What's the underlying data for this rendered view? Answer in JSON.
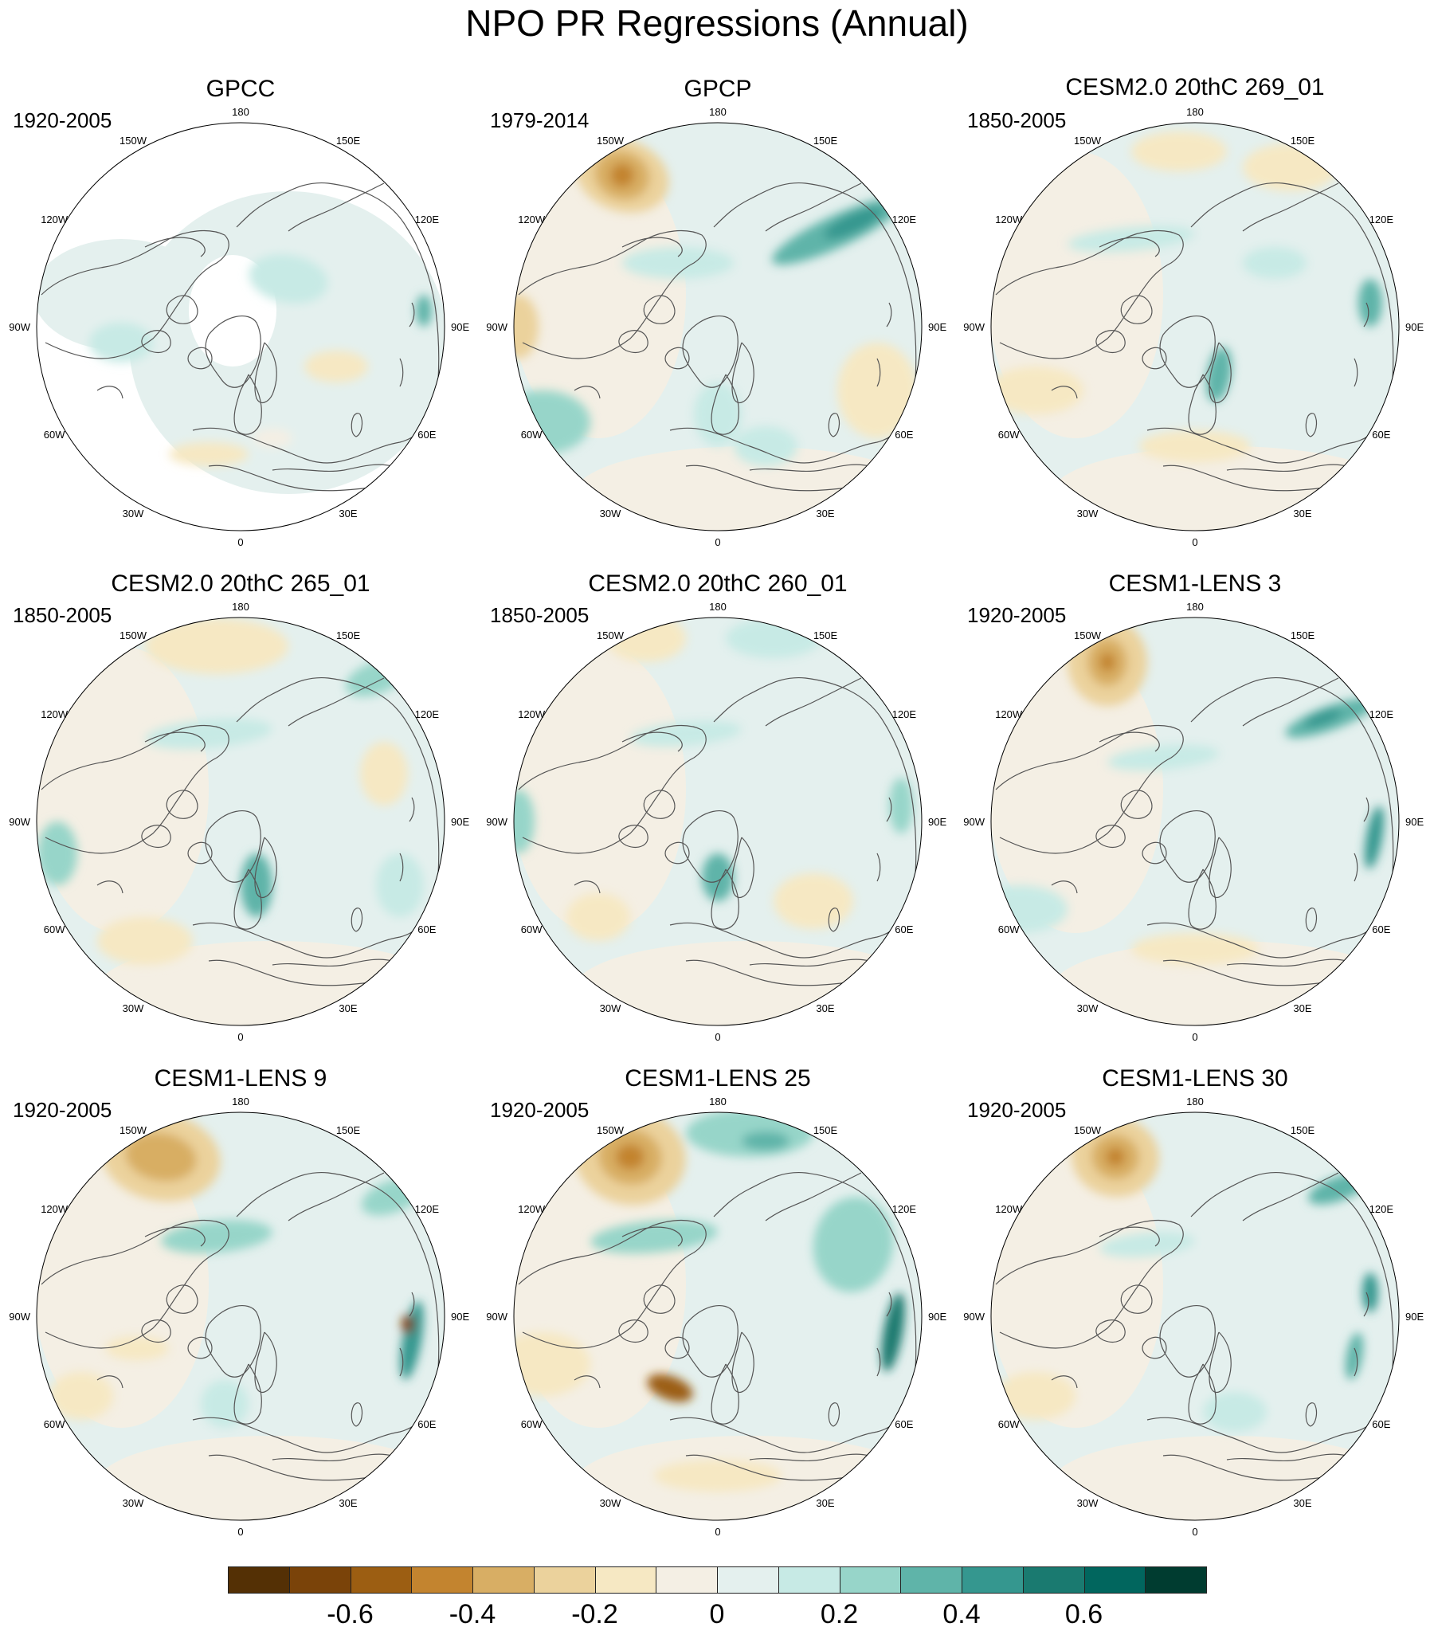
{
  "title": "NPO PR Regressions (Annual)",
  "longitude_labels": [
    "180",
    "150E",
    "120E",
    "90E",
    "60E",
    "30E",
    "0",
    "30W",
    "60W",
    "90W",
    "120W",
    "150W"
  ],
  "panels": [
    {
      "title": "GPCC",
      "period": "1920-2005",
      "land_only": true
    },
    {
      "title": "GPCP",
      "period": "1979-2014",
      "land_only": false
    },
    {
      "title": "CESM2.0 20thC 269_01",
      "period": "1850-2005",
      "land_only": false
    },
    {
      "title": "CESM2.0 20thC 265_01",
      "period": "1850-2005",
      "land_only": false
    },
    {
      "title": "CESM2.0 20thC 260_01",
      "period": "1850-2005",
      "land_only": false
    },
    {
      "title": "CESM1-LENS 3",
      "period": "1920-2005",
      "land_only": false
    },
    {
      "title": "CESM1-LENS 9",
      "period": "1920-2005",
      "land_only": false
    },
    {
      "title": "CESM1-LENS 25",
      "period": "1920-2005",
      "land_only": false
    },
    {
      "title": "CESM1-LENS 30",
      "period": "1920-2005",
      "land_only": false
    }
  ],
  "colorbar": {
    "colors": [
      "#543005",
      "#7a4309",
      "#9c5e12",
      "#c3842f",
      "#d8ae64",
      "#ebd29c",
      "#f6e8c3",
      "#f4efe4",
      "#e4f0ee",
      "#c7eae5",
      "#97d5c9",
      "#5fb4a9",
      "#35978f",
      "#1a7a70",
      "#01665e",
      "#003c30"
    ],
    "tick_labels": [
      "-0.6",
      "-0.4",
      "-0.2",
      "0",
      "0.2",
      "0.4",
      "0.6"
    ],
    "tick_values": [
      -0.6,
      -0.4,
      -0.2,
      0,
      0.2,
      0.4,
      0.6
    ],
    "min": -0.8,
    "max": 0.8
  }
}
